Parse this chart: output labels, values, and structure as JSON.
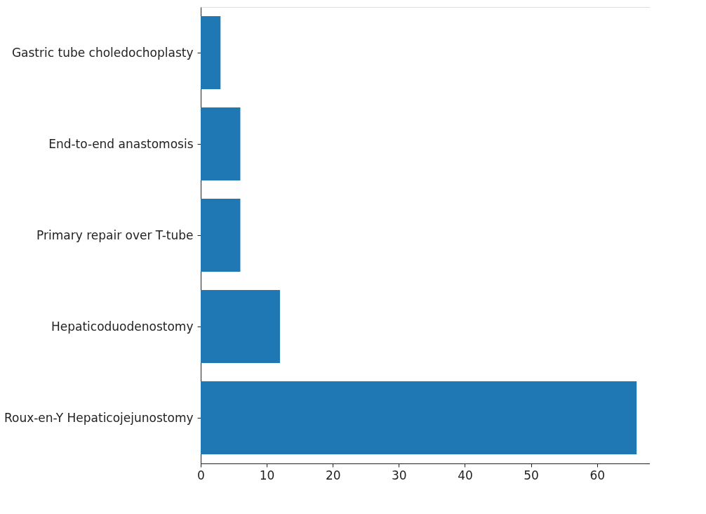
{
  "chart_data": {
    "type": "bar",
    "orientation": "horizontal",
    "categories": [
      "Gastric tube choledochoplasty",
      "End-to-end anastomosis",
      "Primary repair over T-tube",
      "Hepaticoduodenostomy",
      "Roux-en-Y Hepaticojejunostomy"
    ],
    "values": [
      3,
      6,
      6,
      12,
      66
    ],
    "color": "#1f77b4",
    "xlim": [
      0,
      68
    ],
    "xticks": [
      0,
      10,
      20,
      30,
      40,
      50,
      60
    ],
    "grid": false
  }
}
